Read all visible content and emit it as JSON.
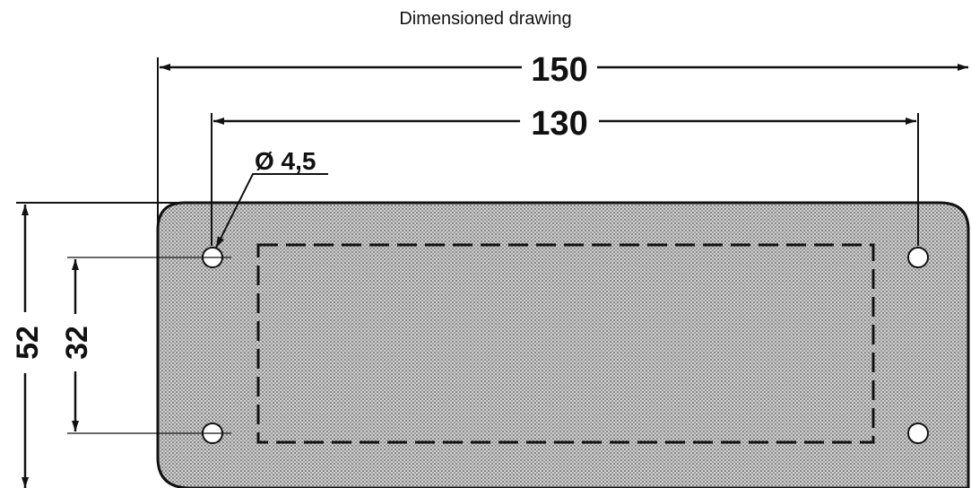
{
  "caption": "Dimensioned drawing",
  "dimensions": {
    "overall_width": "150",
    "hole_spacing_width": "130",
    "hole_diameter": "Ø 4,5",
    "overall_height": "52",
    "hole_spacing_height": "32"
  },
  "colors": {
    "line": "#111111",
    "plate_fill": "#b9b9b9",
    "background": "#ffffff"
  }
}
